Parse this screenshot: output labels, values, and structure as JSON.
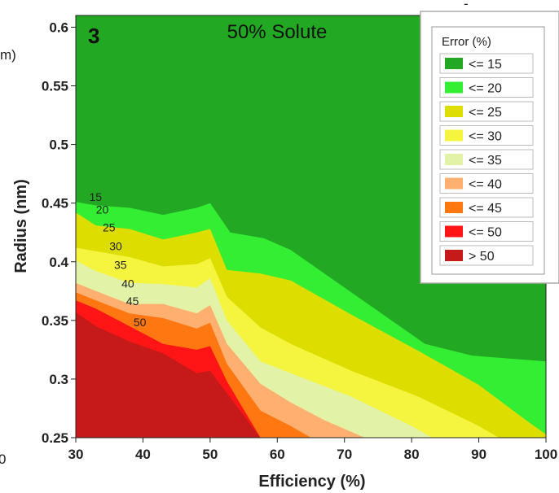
{
  "chart_data": {
    "type": "area",
    "panel_number": "3",
    "title": "50% Solute",
    "xlabel": "Efficiency (%)",
    "ylabel": "Radius (nm)",
    "xlim": [
      30,
      100
    ],
    "ylim": [
      0.25,
      0.61
    ],
    "x_ticks": [
      "30",
      "40",
      "50",
      "60",
      "70",
      "80",
      "90",
      "100"
    ],
    "y_ticks": [
      "0.25",
      "0.3",
      "0.35",
      "0.4",
      "0.45",
      "0.5",
      "0.55",
      "0.6"
    ],
    "legend": {
      "title": "Error (%)",
      "position": "top-right",
      "entries": [
        {
          "label": "<= 15",
          "color": "#22a822"
        },
        {
          "label": "<= 20",
          "color": "#33ee33"
        },
        {
          "label": "<= 25",
          "color": "#dddd00"
        },
        {
          "label": "<= 30",
          "color": "#f5f540"
        },
        {
          "label": "<= 35",
          "color": "#e2f2a6"
        },
        {
          "label": "<= 40",
          "color": "#ffb070"
        },
        {
          "label": "<= 45",
          "color": "#ff7711"
        },
        {
          "label": "<= 50",
          "color": "#ff1515"
        },
        {
          "label": "> 50",
          "color": "#c61a1a"
        }
      ]
    },
    "series": [
      {
        "name": "> 50",
        "color": "#c61a1a",
        "x": [
          30,
          33,
          38,
          43,
          48,
          50,
          52.5,
          57.5,
          60
        ],
        "y": [
          0.357,
          0.345,
          0.332,
          0.322,
          0.305,
          0.307,
          0.288,
          0.25,
          0.25
        ]
      },
      {
        "name": "<= 50",
        "color": "#ff1515",
        "x": [
          30,
          33,
          38,
          43,
          48,
          50,
          52.5,
          57.5,
          58.5
        ],
        "y": [
          0.367,
          0.36,
          0.345,
          0.33,
          0.325,
          0.328,
          0.298,
          0.25,
          0.25
        ]
      },
      {
        "name": "<= 45",
        "color": "#ff7711",
        "x": [
          30,
          33,
          38,
          43,
          48,
          50,
          52.5,
          57.5,
          62,
          65
        ],
        "y": [
          0.374,
          0.367,
          0.356,
          0.352,
          0.343,
          0.348,
          0.313,
          0.273,
          0.26,
          0.25
        ]
      },
      {
        "name": "<= 40",
        "color": "#ffb070",
        "x": [
          30,
          33,
          38,
          43,
          48,
          50,
          52.5,
          57.5,
          62,
          67,
          73
        ],
        "y": [
          0.382,
          0.375,
          0.364,
          0.364,
          0.356,
          0.363,
          0.33,
          0.296,
          0.28,
          0.265,
          0.25
        ]
      },
      {
        "name": "<= 35",
        "color": "#e2f2a6",
        "x": [
          30,
          33,
          38,
          43,
          48,
          50,
          52.5,
          57.5,
          62,
          71,
          80,
          83
        ],
        "y": [
          0.401,
          0.392,
          0.382,
          0.381,
          0.378,
          0.386,
          0.35,
          0.315,
          0.305,
          0.285,
          0.26,
          0.25
        ]
      },
      {
        "name": "<= 30",
        "color": "#f5f540",
        "x": [
          30,
          33,
          38,
          43,
          48,
          50,
          52.5,
          57.5,
          62,
          71,
          81,
          90,
          93
        ],
        "y": [
          0.412,
          0.409,
          0.404,
          0.396,
          0.398,
          0.403,
          0.37,
          0.344,
          0.33,
          0.307,
          0.285,
          0.26,
          0.25
        ]
      },
      {
        "name": "<= 25",
        "color": "#dddd00",
        "x": [
          30,
          33,
          38,
          43,
          48,
          50,
          52.5,
          57.5,
          62,
          71,
          81,
          90,
          97,
          100
        ],
        "y": [
          0.442,
          0.431,
          0.428,
          0.419,
          0.425,
          0.428,
          0.393,
          0.39,
          0.384,
          0.355,
          0.324,
          0.295,
          0.265,
          0.253
        ]
      },
      {
        "name": "<= 20",
        "color": "#33ee33",
        "x": [
          30,
          33,
          38,
          43,
          48,
          50,
          53,
          58,
          62,
          72,
          82,
          89,
          100
        ],
        "y": [
          0.451,
          0.448,
          0.446,
          0.44,
          0.446,
          0.45,
          0.425,
          0.42,
          0.41,
          0.37,
          0.33,
          0.32,
          0.315
        ]
      },
      {
        "name": "<= 15",
        "color": "#22a822",
        "x": [
          30,
          100
        ],
        "y": [
          0.61,
          0.61
        ]
      }
    ],
    "contour_labels": [
      {
        "text": "15",
        "x": 32,
        "y": 0.452
      },
      {
        "text": "20",
        "x": 33,
        "y": 0.441
      },
      {
        "text": "25",
        "x": 34,
        "y": 0.426
      },
      {
        "text": "30",
        "x": 35,
        "y": 0.41
      },
      {
        "text": "35",
        "x": 35.7,
        "y": 0.394
      },
      {
        "text": "40",
        "x": 36.8,
        "y": 0.378
      },
      {
        "text": "45",
        "x": 37.5,
        "y": 0.363
      },
      {
        "text": "50",
        "x": 38.6,
        "y": 0.345
      }
    ]
  },
  "cropped_edge_text": {
    "left_top": "m)",
    "left_bottom": "0",
    "top_right": "-"
  }
}
